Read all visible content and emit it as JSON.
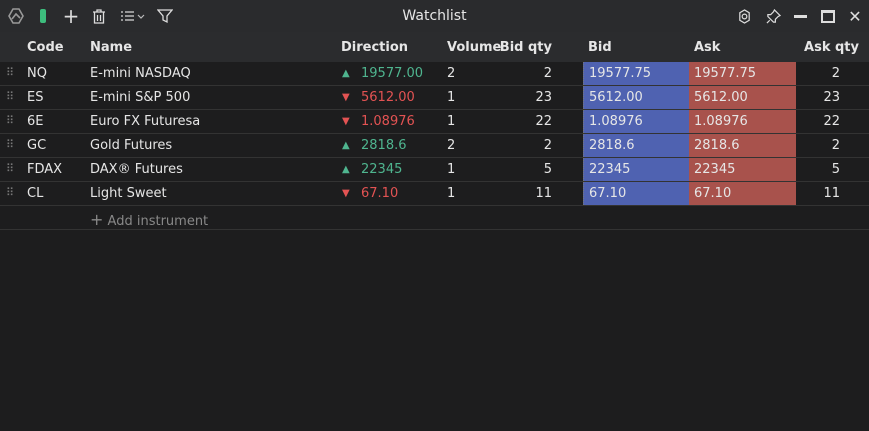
{
  "title": "Watchlist",
  "toolbar_icons": [
    "app-logo-icon",
    "color-tag-icon",
    "add-icon",
    "trash-icon",
    "list-menu-icon",
    "filter-icon"
  ],
  "window_icons": [
    "settings-icon",
    "pin-icon",
    "minimize-icon",
    "maximize-icon",
    "close-icon"
  ],
  "colors": {
    "bid": "#4f62b1",
    "ask": "#a8524c",
    "up": "#4fb58f",
    "down": "#e35353",
    "tag": "#3dbd7d"
  },
  "columns": [
    "Code",
    "Name",
    "Direction",
    "Volume",
    "Bid qty",
    "Bid",
    "Ask",
    "Ask qty"
  ],
  "rows": [
    {
      "code": "NQ",
      "name": "E-mini NASDAQ",
      "dir": "up",
      "last": "19577.00",
      "volume": "2",
      "bid_qty": "2",
      "bid": "19577.75",
      "ask": "19577.75",
      "ask_qty": "2"
    },
    {
      "code": "ES",
      "name": "E-mini S&P 500",
      "dir": "down",
      "last": "5612.00",
      "volume": "1",
      "bid_qty": "23",
      "bid": "5612.00",
      "ask": "5612.00",
      "ask_qty": "23"
    },
    {
      "code": "6E",
      "name": "Euro FX Futuresa",
      "dir": "down",
      "last": "1.08976",
      "volume": "1",
      "bid_qty": "22",
      "bid": "1.08976",
      "ask": "1.08976",
      "ask_qty": "22"
    },
    {
      "code": "GC",
      "name": "Gold Futures",
      "dir": "up",
      "last": "2818.6",
      "volume": "2",
      "bid_qty": "2",
      "bid": "2818.6",
      "ask": "2818.6",
      "ask_qty": "2"
    },
    {
      "code": "FDAX",
      "name": "DAX® Futures",
      "dir": "up",
      "last": "22345",
      "volume": "1",
      "bid_qty": "5",
      "bid": "22345",
      "ask": "22345",
      "ask_qty": "5"
    },
    {
      "code": "CL",
      "name": "Light Sweet",
      "dir": "down",
      "last": "67.10",
      "volume": "1",
      "bid_qty": "11",
      "bid": "67.10",
      "ask": "67.10",
      "ask_qty": "11"
    }
  ],
  "add_instrument": "Add instrument"
}
